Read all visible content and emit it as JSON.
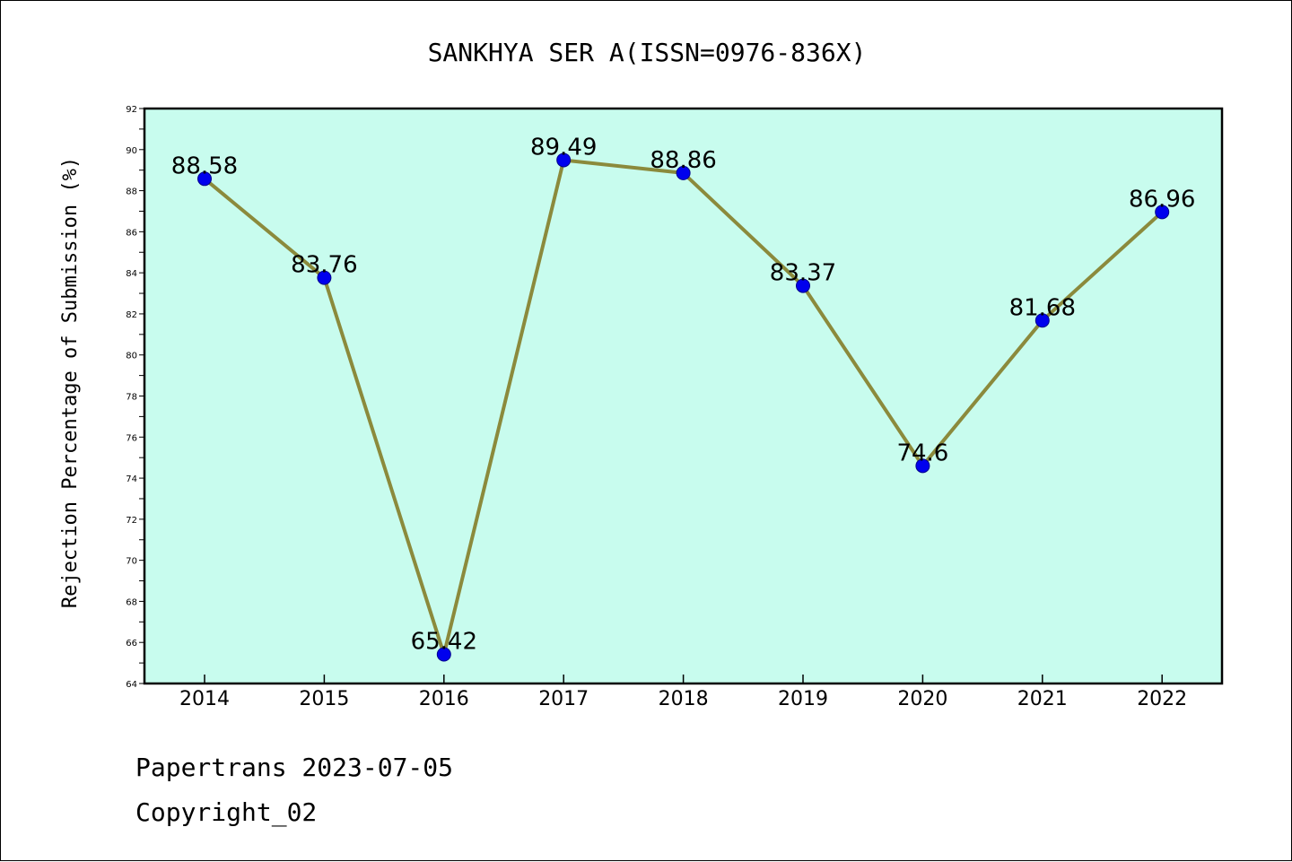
{
  "chart_data": {
    "type": "line",
    "title": "SANKHYA SER A(ISSN=0976-836X)",
    "xlabel": "",
    "ylabel": "Rejection Percentage of Submission (%)",
    "categories": [
      "2014",
      "2015",
      "2016",
      "2017",
      "2018",
      "2019",
      "2020",
      "2021",
      "2022"
    ],
    "series": [
      {
        "values": [
          88.58,
          83.76,
          65.42,
          89.49,
          88.86,
          83.37,
          74.6,
          81.68,
          86.96
        ],
        "labels": [
          "88.58",
          "83.76",
          "65.42",
          "89.49",
          "88.86",
          "83.37",
          "74.6",
          "81.68",
          "86.96"
        ]
      }
    ],
    "ylim": [
      64,
      92
    ],
    "yticks": [
      "64",
      "66",
      "68",
      "70",
      "72",
      "74",
      "76",
      "78",
      "80",
      "82",
      "84",
      "86",
      "88",
      "90",
      "92"
    ],
    "grid": false,
    "legend": "none",
    "colors": {
      "plot_background": "#c8fcee",
      "line": "#8b8a3c",
      "marker": "#0000ee",
      "frame": "#000000"
    }
  },
  "footer": {
    "line1": "Papertrans 2023-07-05",
    "line2": "Copyright_02"
  }
}
